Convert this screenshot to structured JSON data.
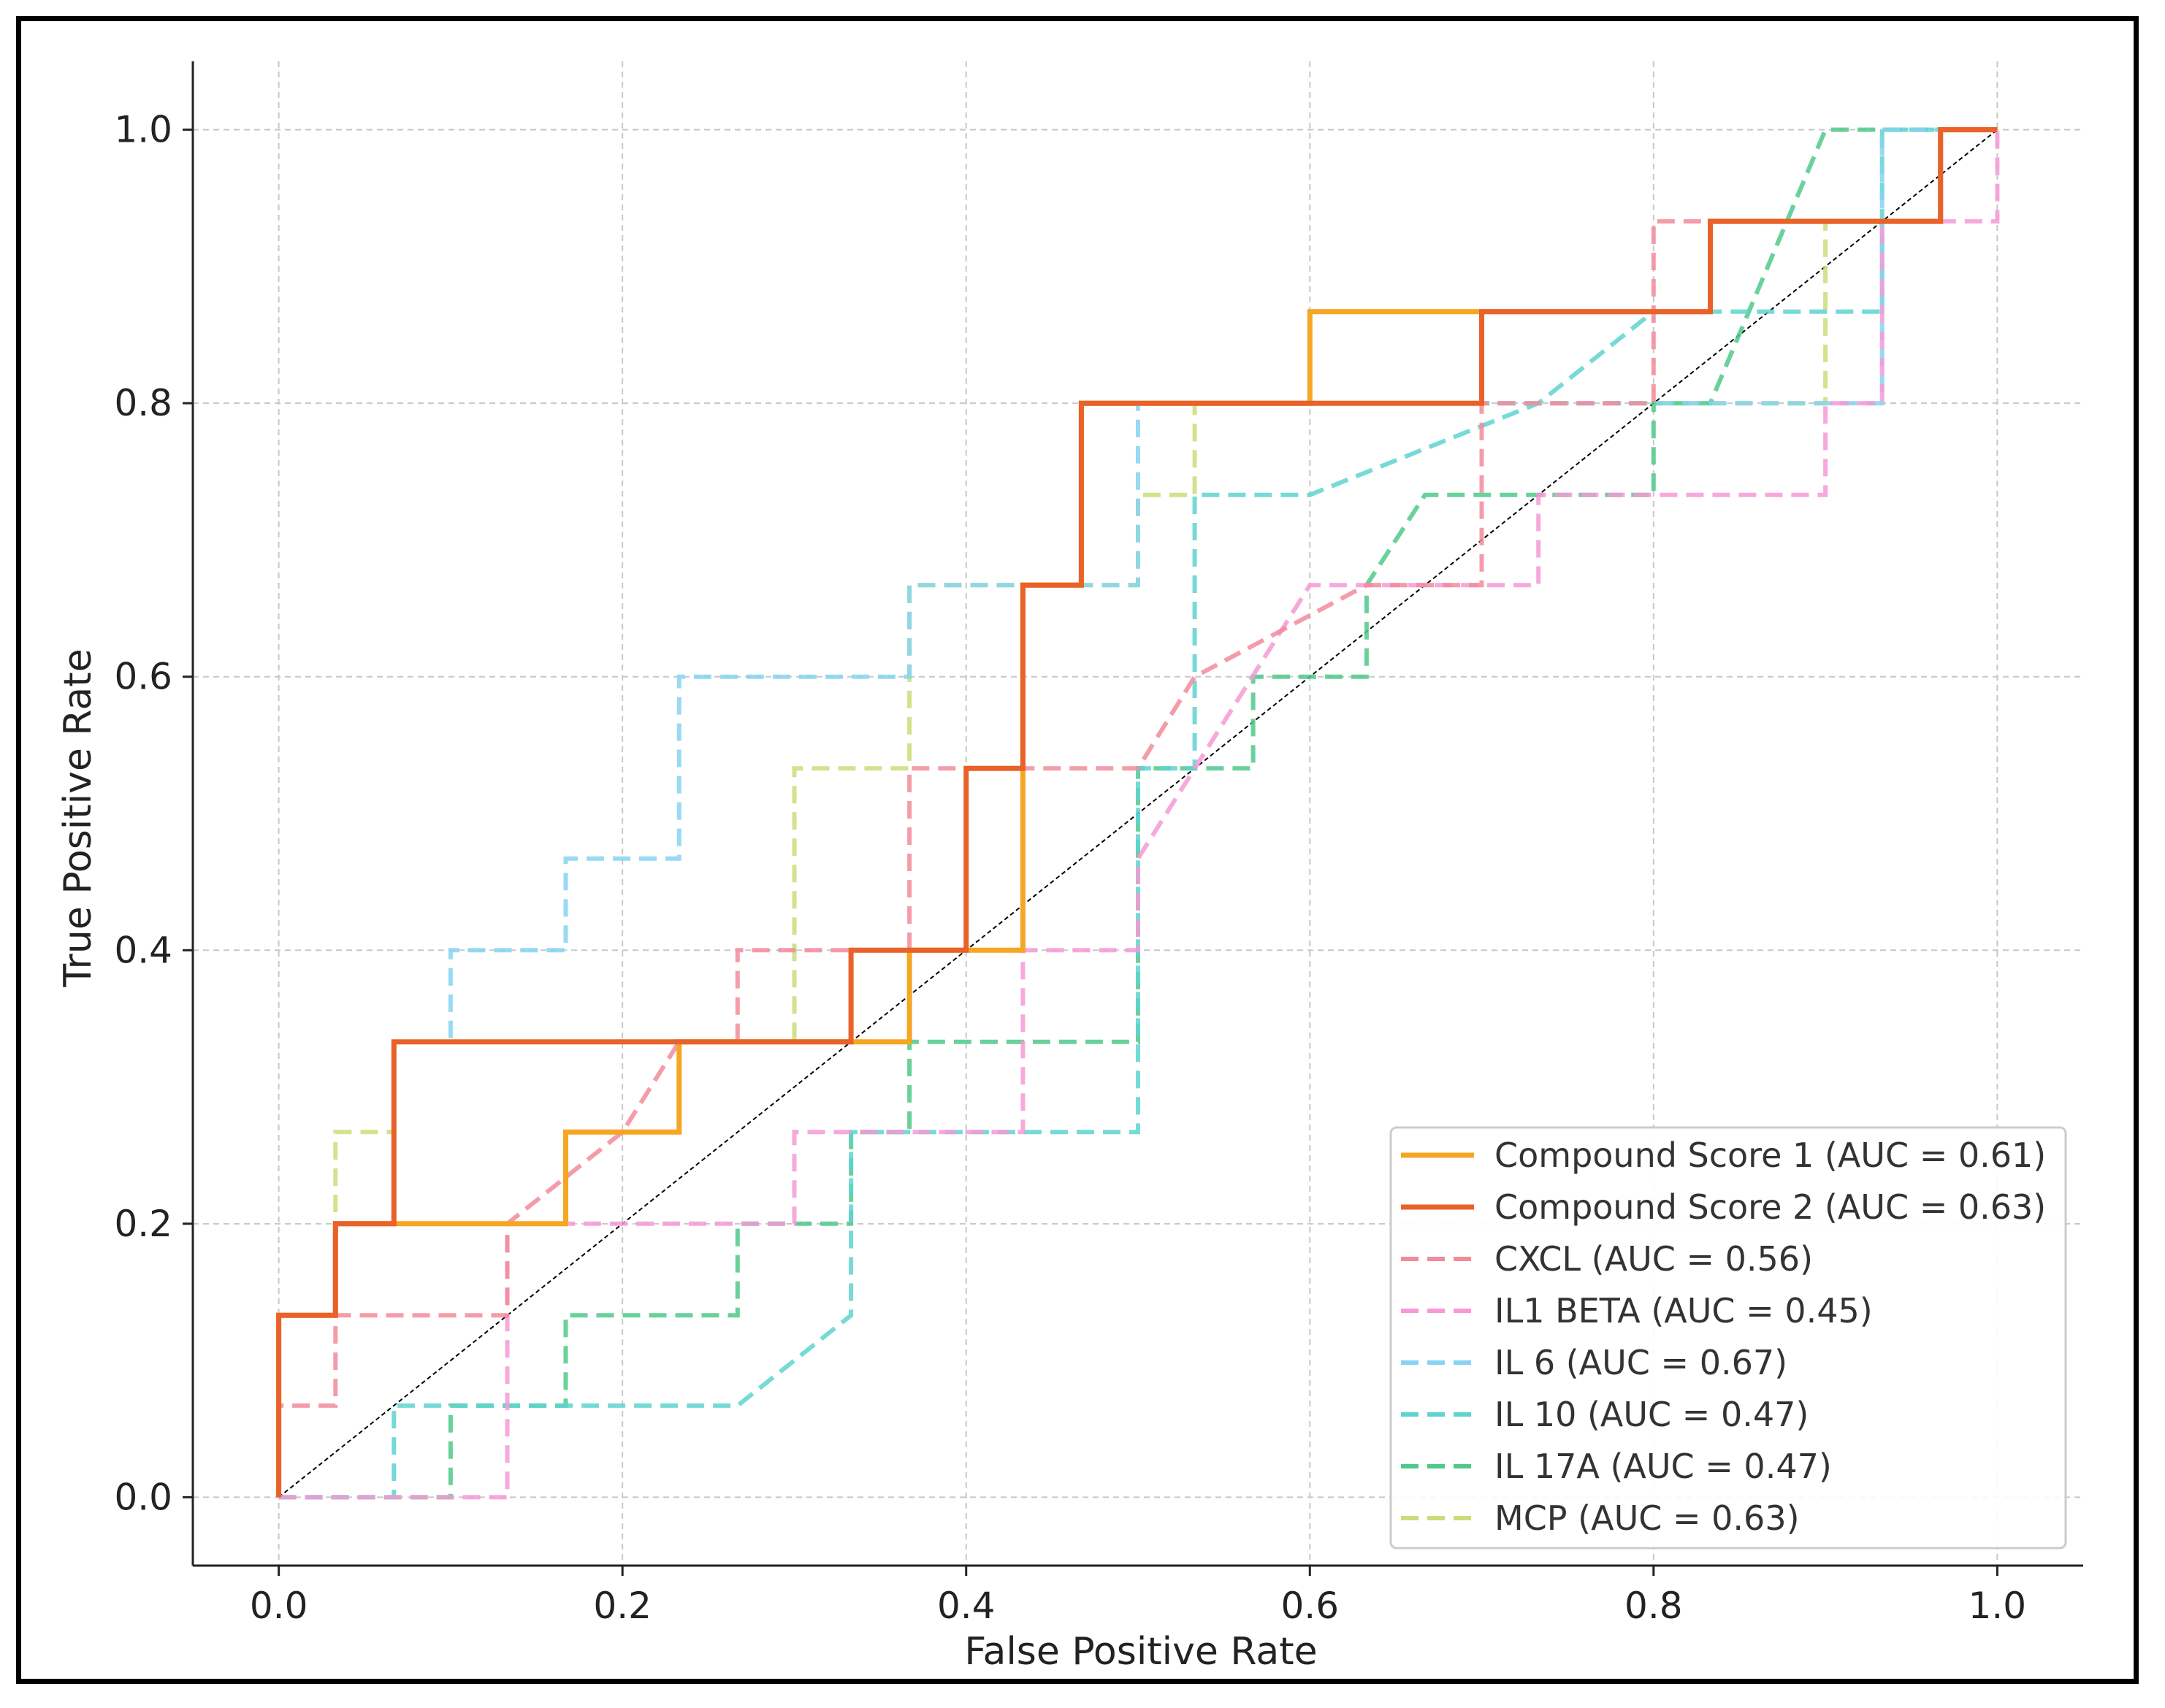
{
  "chart_data": {
    "type": "line",
    "title": "",
    "xlabel": "False Positive Rate",
    "ylabel": "True Positive Rate",
    "xlim": [
      -0.05,
      1.05
    ],
    "ylim": [
      -0.05,
      1.05
    ],
    "xticks": [
      0.0,
      0.2,
      0.4,
      0.6,
      0.8,
      1.0
    ],
    "yticks": [
      0.0,
      0.2,
      0.4,
      0.6,
      0.8,
      1.0
    ],
    "xtick_labels": [
      "0.0",
      "0.2",
      "0.4",
      "0.6",
      "0.8",
      "1.0"
    ],
    "ytick_labels": [
      "0.0",
      "0.2",
      "0.4",
      "0.6",
      "0.8",
      "1.0"
    ],
    "grid": true,
    "legend_position": "bottom-right",
    "diagonal": {
      "name": "chance",
      "x": [
        0,
        1
      ],
      "y": [
        0,
        1
      ],
      "color": "#000000"
    },
    "series": [
      {
        "name": "Compound Score 1 (AUC = 0.61)",
        "color": "#F5A623",
        "dashed": false,
        "x": [
          0,
          0,
          0.033,
          0.033,
          0.067,
          0.067,
          0.167,
          0.167,
          0.233,
          0.233,
          0.367,
          0.367,
          0.433,
          0.433,
          0.467,
          0.467,
          0.6,
          0.6,
          0.7,
          0.7,
          0.833,
          0.833,
          0.967,
          0.967,
          1.0
        ],
        "y": [
          0,
          0.133,
          0.133,
          0.2,
          0.2,
          0.2,
          0.2,
          0.267,
          0.267,
          0.333,
          0.333,
          0.4,
          0.4,
          0.667,
          0.667,
          0.8,
          0.8,
          0.867,
          0.867,
          0.867,
          0.867,
          0.933,
          0.933,
          1.0,
          1.0
        ]
      },
      {
        "name": "Compound Score 2 (AUC = 0.63)",
        "color": "#E8622A",
        "dashed": false,
        "x": [
          0,
          0,
          0.033,
          0.033,
          0.067,
          0.067,
          0.333,
          0.333,
          0.4,
          0.4,
          0.433,
          0.433,
          0.467,
          0.467,
          0.7,
          0.7,
          0.833,
          0.833,
          0.967,
          0.967,
          1.0
        ],
        "y": [
          0,
          0.133,
          0.133,
          0.2,
          0.2,
          0.333,
          0.333,
          0.4,
          0.4,
          0.533,
          0.533,
          0.667,
          0.667,
          0.8,
          0.8,
          0.867,
          0.867,
          0.933,
          0.933,
          1.0,
          1.0
        ]
      },
      {
        "name": "CXCL (AUC = 0.56)",
        "color": "#F28B9A",
        "dashed": true,
        "x": [
          0,
          0,
          0.033,
          0.033,
          0.133,
          0.133,
          0.2,
          0.233,
          0.267,
          0.267,
          0.367,
          0.367,
          0.5,
          0.533,
          0.633,
          0.7,
          0.7,
          0.8,
          0.8,
          0.967,
          0.967,
          1.0
        ],
        "y": [
          0,
          0.067,
          0.067,
          0.133,
          0.133,
          0.2,
          0.267,
          0.333,
          0.333,
          0.4,
          0.4,
          0.533,
          0.533,
          0.6,
          0.667,
          0.667,
          0.8,
          0.8,
          0.933,
          0.933,
          1.0,
          1.0
        ]
      },
      {
        "name": "IL1 BETA (AUC = 0.45)",
        "color": "#F59AD6",
        "dashed": true,
        "x": [
          0,
          0.133,
          0.133,
          0.3,
          0.3,
          0.433,
          0.433,
          0.5,
          0.5,
          0.6,
          0.733,
          0.733,
          0.9,
          0.9,
          0.933,
          0.933,
          1.0,
          1.0
        ],
        "y": [
          0,
          0,
          0.2,
          0.2,
          0.267,
          0.267,
          0.4,
          0.4,
          0.467,
          0.667,
          0.667,
          0.733,
          0.733,
          0.8,
          0.8,
          0.933,
          0.933,
          1.0
        ]
      },
      {
        "name": "IL 6 (AUC = 0.67)",
        "color": "#86D3F2",
        "dashed": true,
        "x": [
          0,
          0,
          0.033,
          0.033,
          0.067,
          0.067,
          0.1,
          0.1,
          0.167,
          0.167,
          0.233,
          0.233,
          0.367,
          0.367,
          0.5,
          0.5,
          0.6,
          0.933,
          0.933,
          1.0
        ],
        "y": [
          0,
          0.133,
          0.133,
          0.2,
          0.2,
          0.333,
          0.333,
          0.4,
          0.4,
          0.467,
          0.467,
          0.6,
          0.6,
          0.667,
          0.667,
          0.8,
          0.8,
          0.8,
          1.0,
          1.0
        ]
      },
      {
        "name": "IL 10 (AUC = 0.47)",
        "color": "#5ED4D0",
        "dashed": true,
        "x": [
          0,
          0.067,
          0.067,
          0.167,
          0.167,
          0.267,
          0.333,
          0.333,
          0.5,
          0.5,
          0.533,
          0.533,
          0.6,
          0.733,
          0.8,
          0.933,
          0.933,
          1.0
        ],
        "y": [
          0,
          0,
          0.067,
          0.067,
          0.067,
          0.067,
          0.133,
          0.267,
          0.267,
          0.533,
          0.533,
          0.733,
          0.733,
          0.8,
          0.867,
          0.867,
          1.0,
          1.0
        ]
      },
      {
        "name": "IL 17A (AUC = 0.47)",
        "color": "#4FC98A",
        "dashed": true,
        "x": [
          0,
          0.1,
          0.1,
          0.167,
          0.167,
          0.267,
          0.267,
          0.333,
          0.333,
          0.367,
          0.367,
          0.5,
          0.5,
          0.567,
          0.567,
          0.633,
          0.633,
          0.667,
          0.8,
          0.8,
          0.833,
          0.9,
          1.0
        ],
        "y": [
          0,
          0,
          0.067,
          0.067,
          0.133,
          0.133,
          0.2,
          0.2,
          0.267,
          0.267,
          0.333,
          0.333,
          0.533,
          0.533,
          0.6,
          0.6,
          0.667,
          0.733,
          0.733,
          0.8,
          0.8,
          1.0,
          1.0
        ]
      },
      {
        "name": "MCP (AUC = 0.63)",
        "color": "#C9DE78",
        "dashed": true,
        "x": [
          0,
          0,
          0.033,
          0.033,
          0.067,
          0.067,
          0.3,
          0.3,
          0.367,
          0.367,
          0.5,
          0.5,
          0.533,
          0.533,
          0.9,
          0.9,
          0.967,
          0.967,
          1.0
        ],
        "y": [
          0,
          0.133,
          0.133,
          0.267,
          0.267,
          0.333,
          0.333,
          0.533,
          0.533,
          0.667,
          0.667,
          0.733,
          0.733,
          0.8,
          0.8,
          0.933,
          0.933,
          1.0,
          1.0
        ]
      }
    ]
  }
}
